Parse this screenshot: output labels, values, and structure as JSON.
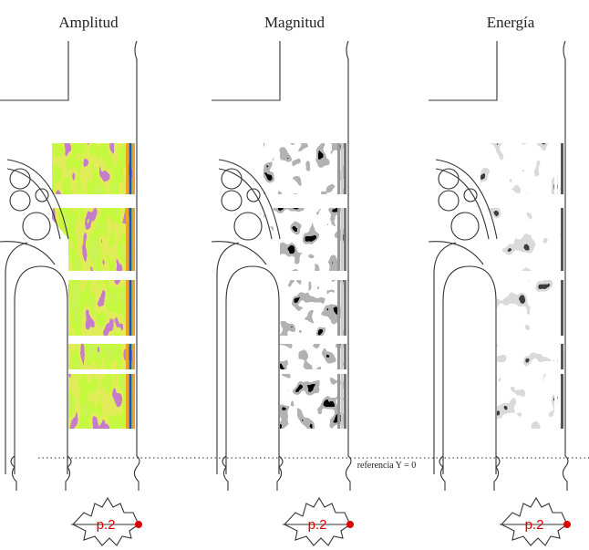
{
  "panels": [
    {
      "title": "Amplitud",
      "plan_label": "p.2"
    },
    {
      "title": "Magnitud",
      "plan_label": "p.2"
    },
    {
      "title": "Energía",
      "plan_label": "p.2"
    }
  ],
  "reference_label": "referencia Y = 0"
}
